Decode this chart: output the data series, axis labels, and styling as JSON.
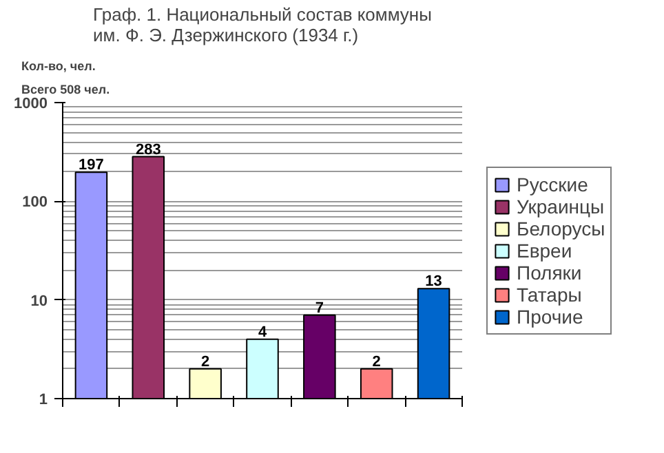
{
  "chart_data": {
    "type": "bar",
    "title": "Граф. 1. Национальный состав коммуны\nим. Ф. Э. Дзержинского  (1934 г.)",
    "ylabel": "Кол-во, чел.",
    "annotations": [
      "Всего 508 чел."
    ],
    "categories": [
      null,
      null,
      null,
      null,
      null,
      null,
      null
    ],
    "stacked": true,
    "series": [
      {
        "name": "Русские",
        "color": "#9999ff",
        "values": [
          197,
          null,
          null,
          null,
          null,
          null,
          null
        ]
      },
      {
        "name": "Украинцы",
        "color": "#993366",
        "values": [
          null,
          283,
          null,
          null,
          null,
          null,
          null
        ]
      },
      {
        "name": "Белорусы",
        "color": "#ffffcc",
        "values": [
          null,
          null,
          2,
          null,
          null,
          null,
          null
        ]
      },
      {
        "name": "Евреи",
        "color": "#ccffff",
        "values": [
          null,
          null,
          null,
          4,
          null,
          null,
          null
        ]
      },
      {
        "name": "Поляки",
        "color": "#660066",
        "values": [
          null,
          null,
          null,
          null,
          7,
          null,
          null
        ]
      },
      {
        "name": "Татары",
        "color": "#ff8080",
        "values": [
          null,
          null,
          null,
          null,
          null,
          2,
          null
        ]
      },
      {
        "name": "Прочие",
        "color": "#0066cc",
        "values": [
          null,
          null,
          null,
          null,
          null,
          null,
          13
        ]
      }
    ],
    "log": true,
    "ylim": [
      1,
      1000
    ],
    "yticks": [
      1,
      10,
      100,
      1000
    ],
    "grid": "y",
    "legend": "right",
    "tick_labels": "y",
    "data_labels": true
  }
}
